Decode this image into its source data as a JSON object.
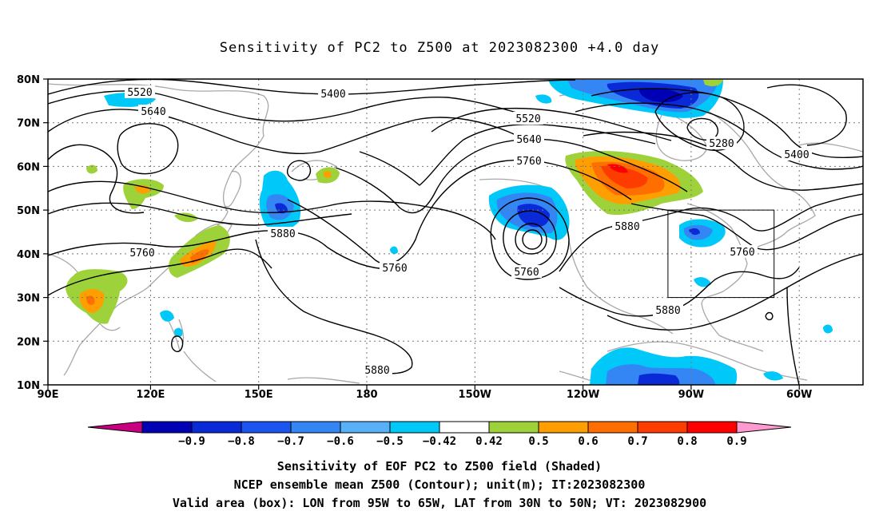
{
  "title": "Sensitivity of PC2 to Z500 at 2023082300 +4.0 day",
  "map": {
    "lat_labels": [
      "80N",
      "70N",
      "60N",
      "50N",
      "40N",
      "30N",
      "20N",
      "10N"
    ],
    "lon_labels": [
      "90E",
      "120E",
      "150E",
      "180",
      "150W",
      "120W",
      "90W",
      "60W"
    ],
    "contour_labels": [
      "5520",
      "5640",
      "5400",
      "5520",
      "5640",
      "5760",
      "5280",
      "5400",
      "5880",
      "5760",
      "5760",
      "5760",
      "5880",
      "5760",
      "5880",
      "5880"
    ],
    "valid_box": {
      "lon_min": "95W",
      "lon_max": "65W",
      "lat_min": "30N",
      "lat_max": "50N"
    }
  },
  "colorbar": {
    "colors": [
      "#c8007f",
      "#0000b4",
      "#0a2ad8",
      "#1c54f0",
      "#3386f4",
      "#58b0f8",
      "#00c8f8",
      "#ffffff",
      "#9ed23a",
      "#ff9e00",
      "#ff6e00",
      "#ff3c00",
      "#ff0000",
      "#ff9ad0"
    ],
    "labels": [
      "-0.9",
      "-0.8",
      "-0.7",
      "-0.6",
      "-0.5",
      "-0.42",
      "0.42",
      "0.5",
      "0.6",
      "0.7",
      "0.8",
      "0.9"
    ]
  },
  "captions": {
    "line1": "Sensitivity of EOF PC2 to Z500 field (Shaded)",
    "line2": "NCEP ensemble mean Z500 (Contour); unit(m); IT:2023082300",
    "line3": "Valid area (box): LON from 95W to 65W, LAT from 30N to 50N; VT: 2023082900"
  }
}
